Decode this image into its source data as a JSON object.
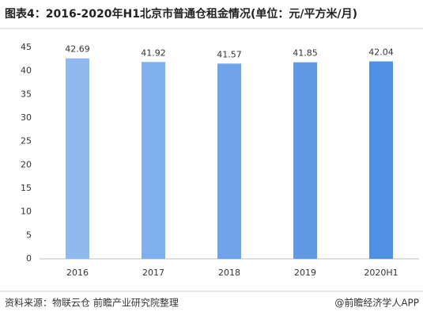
{
  "chart_data": {
    "type": "bar",
    "title": "图表4：2016-2020年H1北京市普通仓租金情况(单位：元/平方米/月)",
    "categories": [
      "2016",
      "2017",
      "2018",
      "2019",
      "2020H1"
    ],
    "values": [
      42.69,
      41.92,
      41.57,
      41.85,
      42.04
    ],
    "colors": [
      "#90b9f0",
      "#80afed",
      "#70a4ea",
      "#609ae7",
      "#4f8fe4"
    ],
    "ylim": [
      0,
      45
    ],
    "yticks": [
      0,
      5,
      10,
      15,
      20,
      25,
      30,
      35,
      40,
      45
    ],
    "grid": false,
    "source": "资料来源：物联云仓 前瞻产业研究院整理",
    "credit": "@前瞻经济学人APP"
  }
}
